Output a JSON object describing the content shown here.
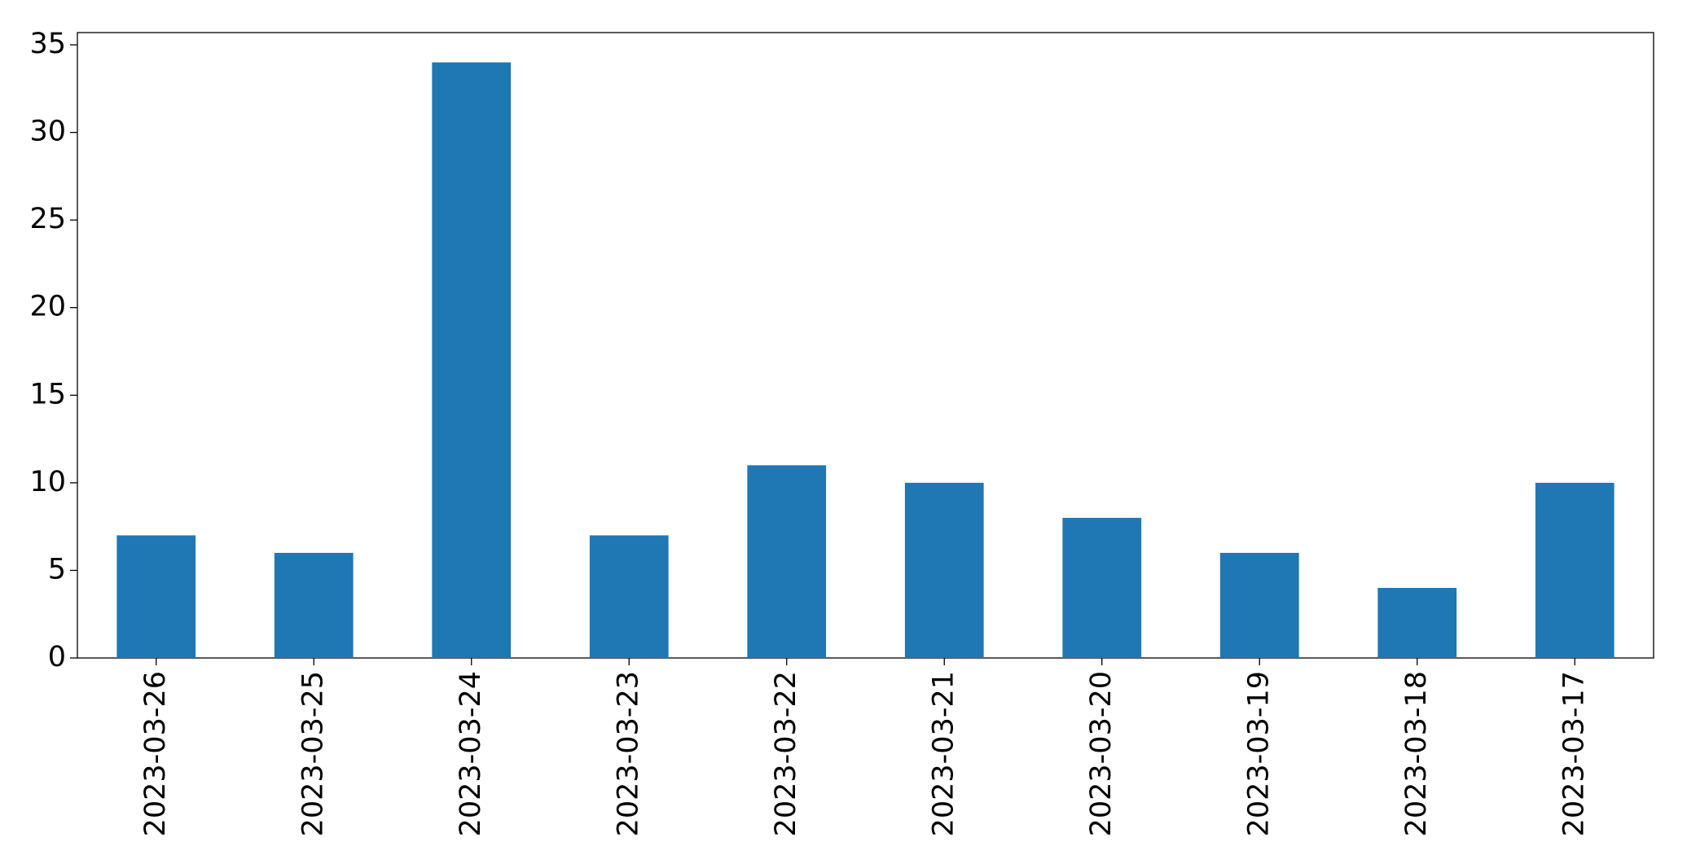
{
  "chart_data": {
    "type": "bar",
    "categories": [
      "2023-03-26",
      "2023-03-25",
      "2023-03-24",
      "2023-03-23",
      "2023-03-22",
      "2023-03-21",
      "2023-03-20",
      "2023-03-19",
      "2023-03-18",
      "2023-03-17"
    ],
    "values": [
      7,
      6,
      34,
      7,
      11,
      10,
      8,
      6,
      4,
      10
    ],
    "color": "#1f77b4",
    "ylim": [
      0,
      35.7
    ],
    "yticks": [
      0,
      5,
      10,
      15,
      20,
      25,
      30,
      35
    ],
    "grid": false
  }
}
